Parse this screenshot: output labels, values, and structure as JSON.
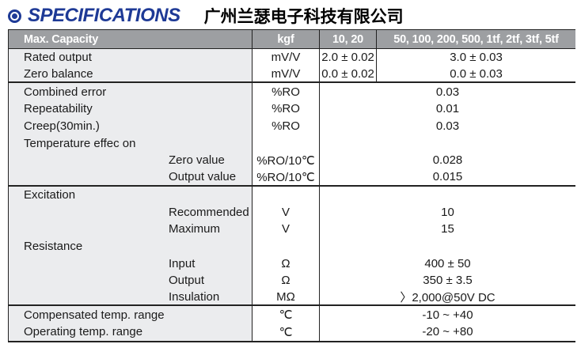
{
  "page": {
    "title": "SPECIFICATIONS",
    "company": "广州兰瑟电子科技有限公司"
  },
  "colors": {
    "heading_blue": "#1e3a96",
    "table_header_bg": "#9d9fa2",
    "table_header_text": "#ffffff",
    "label_column_bg": "#ebecee",
    "grid_line": "#222222",
    "body_text": "#1a1a1a"
  },
  "table": {
    "header": {
      "label": "Max. Capacity",
      "unit": "kgf",
      "col_a": "10, 20",
      "col_b": "50, 100, 200, 500, 1tf, 2tf, 3tf, 5tf"
    },
    "rows": [
      {
        "label": "Rated output",
        "unit": "mV/V",
        "value_a": "2.0 ± 0.02",
        "value_b": "3.0 ± 0.03"
      },
      {
        "label": "Zero balance",
        "unit": "mV/V",
        "value_a": "0.0 ± 0.02",
        "value_b": "0.0 ± 0.03"
      },
      {
        "label": "Combined error",
        "unit": "%RO",
        "value": "0.03"
      },
      {
        "label": "Repeatability",
        "unit": "%RO",
        "value": "0.01"
      },
      {
        "label": "Creep(30min.)",
        "unit": "%RO",
        "value": "0.03"
      },
      {
        "label": "Temperature effec on",
        "unit": "",
        "value": ""
      },
      {
        "label": "Zero value",
        "unit": "%RO/10℃",
        "value": "0.028"
      },
      {
        "label": "Output value",
        "unit": "%RO/10℃",
        "value": "0.015"
      },
      {
        "label": "Excitation",
        "unit": "",
        "value": ""
      },
      {
        "label": "Recommended",
        "unit": "V",
        "value": "10"
      },
      {
        "label": "Maximum",
        "unit": "V",
        "value": "15"
      },
      {
        "label": "Resistance",
        "unit": "",
        "value": ""
      },
      {
        "label": "Input",
        "unit": "Ω",
        "value": "400 ± 50"
      },
      {
        "label": "Output",
        "unit": "Ω",
        "value": "350 ± 3.5"
      },
      {
        "label": "Insulation",
        "unit": "MΩ",
        "value": "〉2,000@50V DC"
      },
      {
        "label": "Compensated temp. range",
        "unit": "℃",
        "value": "-10 ~ +40"
      },
      {
        "label": "Operating temp. range",
        "unit": "℃",
        "value": "-20 ~ +80"
      }
    ]
  }
}
